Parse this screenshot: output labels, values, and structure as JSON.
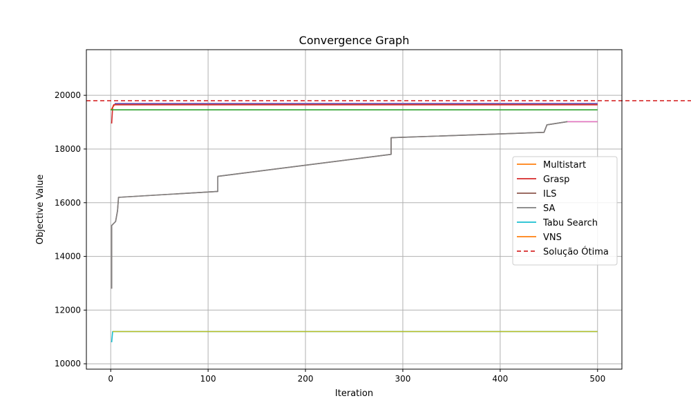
{
  "chart_data": {
    "type": "line",
    "title": "Convergence Graph",
    "xlabel": "Iteration",
    "ylabel": "Objective Value",
    "xlim": [
      -25,
      525
    ],
    "ylim": [
      9800,
      21700
    ],
    "xticks": [
      0,
      100,
      200,
      300,
      400,
      500
    ],
    "yticks": [
      10000,
      12000,
      14000,
      16000,
      18000,
      20000
    ],
    "grid": true,
    "legend_position": "center-right",
    "reference_line": {
      "name": "Solução Ótima",
      "y": 19800,
      "color": "#d62728",
      "style": "dashed"
    },
    "series": [
      {
        "color": "#ff7f0e",
        "points": [
          [
            0,
            19450
          ],
          [
            2,
            19550
          ],
          [
            4,
            19650
          ],
          [
            500,
            19650
          ]
        ]
      },
      {
        "color": "#d62728",
        "points": [
          [
            1,
            18950
          ],
          [
            2,
            19550
          ],
          [
            3,
            19650
          ],
          [
            500,
            19650
          ]
        ]
      },
      {
        "color": "#2ca02c",
        "points": [
          [
            0,
            19460
          ],
          [
            500,
            19460
          ]
        ]
      },
      {
        "color": "#8c564b",
        "points": [
          [
            1,
            12800
          ],
          [
            1,
            15150
          ],
          [
            5,
            15300
          ],
          [
            7,
            15700
          ],
          [
            8,
            16200
          ],
          [
            110,
            16420
          ],
          [
            110,
            16980
          ],
          [
            288,
            17800
          ],
          [
            288,
            18420
          ],
          [
            445,
            18620
          ],
          [
            448,
            18900
          ],
          [
            469,
            19020
          ],
          [
            500,
            19020
          ]
        ]
      },
      {
        "color": "#7f7f7f",
        "points": [
          [
            1,
            12800
          ],
          [
            1,
            15150
          ],
          [
            5,
            15300
          ],
          [
            7,
            15700
          ],
          [
            8,
            16200
          ],
          [
            110,
            16420
          ],
          [
            110,
            16980
          ],
          [
            288,
            17800
          ],
          [
            288,
            18420
          ],
          [
            445,
            18620
          ],
          [
            448,
            18900
          ],
          [
            469,
            19020
          ]
        ]
      },
      {
        "color": "#e377c2",
        "points": [
          [
            469,
            19020
          ],
          [
            500,
            19020
          ]
        ]
      },
      {
        "color": "#17becf",
        "points": [
          [
            1,
            10800
          ],
          [
            2,
            11200
          ],
          [
            500,
            11200
          ]
        ]
      },
      {
        "color": "#bcbd22",
        "points": [
          [
            2,
            11200
          ],
          [
            500,
            11200
          ]
        ]
      },
      {
        "color": "#1f77b4",
        "points": [
          [
            4,
            19690
          ],
          [
            500,
            19690
          ]
        ]
      },
      {
        "color": "#9467bd",
        "points": [
          [
            4,
            19700
          ],
          [
            500,
            19700
          ]
        ]
      }
    ],
    "legend": [
      {
        "label": "Multistart",
        "color": "#ff7f0e",
        "style": "solid"
      },
      {
        "label": "Grasp",
        "color": "#d62728",
        "style": "solid"
      },
      {
        "label": "ILS",
        "color": "#8c564b",
        "style": "solid"
      },
      {
        "label": "SA",
        "color": "#7f7f7f",
        "style": "solid"
      },
      {
        "label": "Tabu Search",
        "color": "#17becf",
        "style": "solid"
      },
      {
        "label": "VNS",
        "color": "#ff7f0e",
        "style": "solid"
      },
      {
        "label": "Solução Ótima",
        "color": "#d62728",
        "style": "dashed"
      }
    ]
  }
}
